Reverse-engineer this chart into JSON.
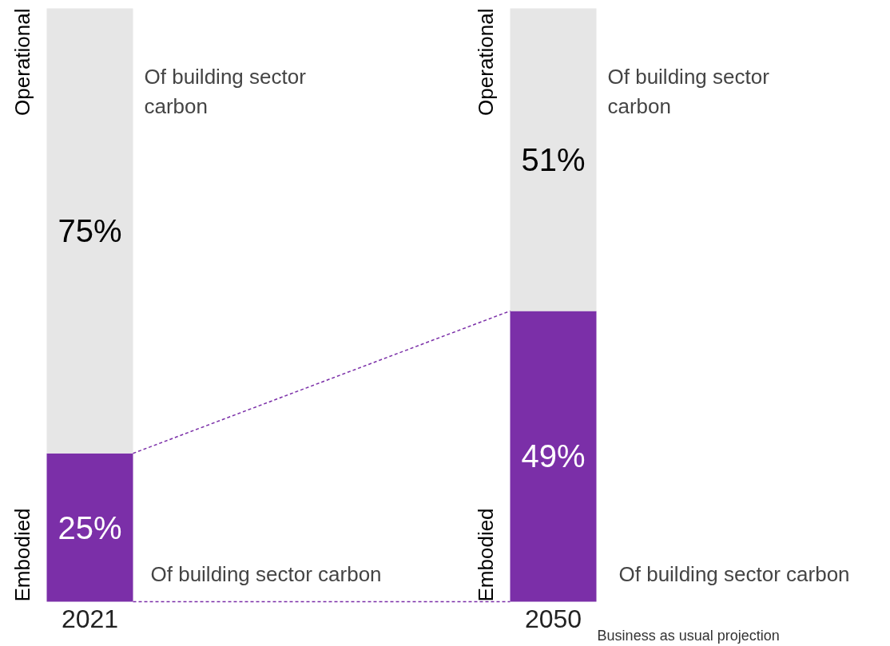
{
  "chart_data": {
    "type": "bar",
    "stacked": true,
    "categories": [
      "2021",
      "2050"
    ],
    "series": [
      {
        "name": "Embodied",
        "color": "#7b2fa8",
        "values": [
          25,
          49
        ],
        "value_labels": [
          "25%",
          "49%"
        ]
      },
      {
        "name": "Operational",
        "color": "#e6e6e6",
        "values": [
          75,
          51
        ],
        "value_labels": [
          "75%",
          "51%"
        ]
      }
    ],
    "annotations": [
      "Of building sector carbon",
      "Of building sector carbon",
      "Of building sector\ncarbon",
      "Of building sector\ncarbon",
      "Business as usual projection"
    ]
  }
}
